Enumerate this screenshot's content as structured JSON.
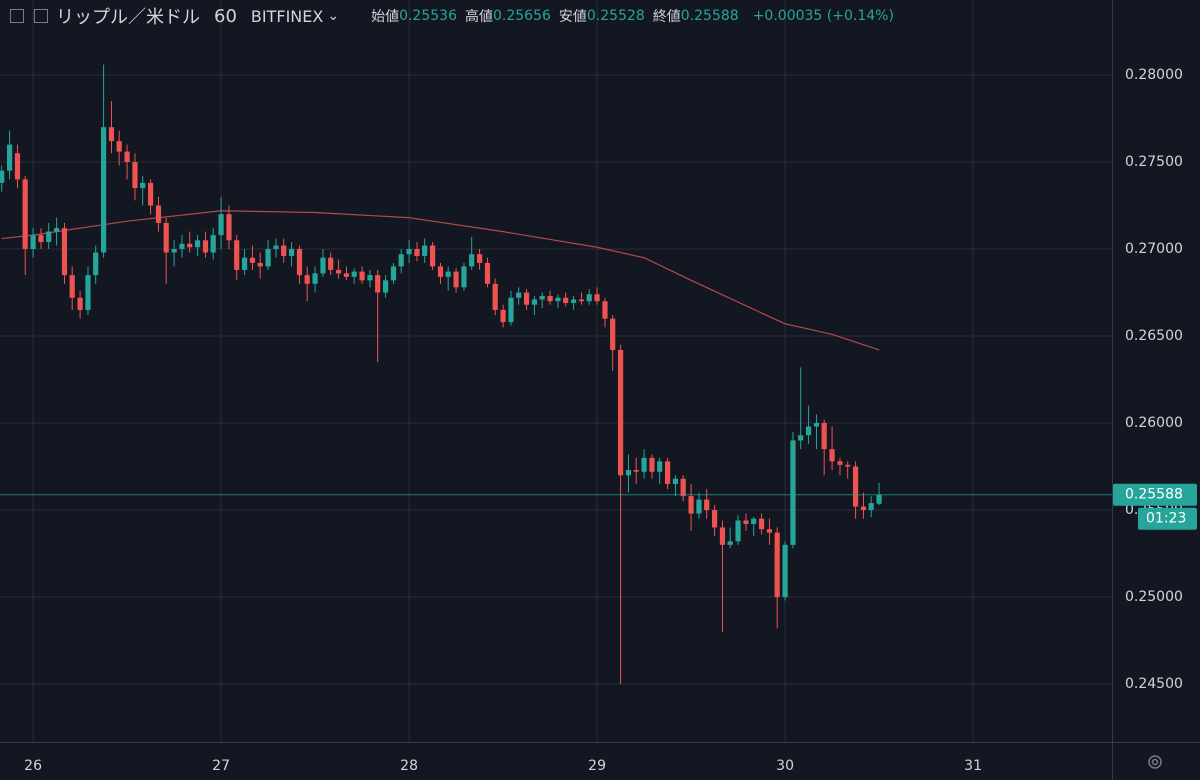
{
  "header": {
    "symbol": "リップル／米ドル",
    "interval": "60",
    "exchange": "BITFINEX",
    "labels": [
      "始値",
      "高値",
      "安値",
      "終値"
    ],
    "change": "+0.00035 (+0.14%)",
    "countdown": "01:23"
  },
  "chart_data": {
    "type": "candlestick",
    "up_color": "#26a69a",
    "down_color": "#ef5350",
    "grid": true,
    "xlim": [
      25.824,
      31.739
    ],
    "xticks": [
      26,
      27,
      28,
      29,
      30,
      31
    ],
    "ylim": [
      0.24167,
      0.28431
    ],
    "yticks": [
      {
        "value": 0.245,
        "label": "0.24500"
      },
      {
        "value": 0.25,
        "label": "0.25000"
      },
      {
        "value": 0.255,
        "label": "0.25500"
      },
      {
        "value": 0.26,
        "label": "0.26000"
      },
      {
        "value": 0.265,
        "label": "0.26500"
      },
      {
        "value": 0.27,
        "label": "0.27000"
      },
      {
        "value": 0.275,
        "label": "0.27500"
      },
      {
        "value": 0.28,
        "label": "0.28000"
      }
    ],
    "x": [
      25.833,
      25.875,
      25.917,
      25.958,
      26.0,
      26.042,
      26.083,
      26.125,
      26.167,
      26.208,
      26.25,
      26.292,
      26.333,
      26.375,
      26.417,
      26.458,
      26.5,
      26.542,
      26.583,
      26.625,
      26.667,
      26.708,
      26.75,
      26.792,
      26.833,
      26.875,
      26.917,
      26.958,
      27.0,
      27.042,
      27.083,
      27.125,
      27.167,
      27.208,
      27.25,
      27.292,
      27.333,
      27.375,
      27.417,
      27.458,
      27.5,
      27.542,
      27.583,
      27.625,
      27.667,
      27.708,
      27.75,
      27.792,
      27.833,
      27.875,
      27.917,
      27.958,
      28.0,
      28.042,
      28.083,
      28.125,
      28.167,
      28.208,
      28.25,
      28.292,
      28.333,
      28.375,
      28.417,
      28.458,
      28.5,
      28.542,
      28.583,
      28.625,
      28.667,
      28.708,
      28.75,
      28.792,
      28.833,
      28.875,
      28.917,
      28.958,
      29.0,
      29.042,
      29.083,
      29.125,
      29.167,
      29.208,
      29.25,
      29.292,
      29.333,
      29.375,
      29.417,
      29.458,
      29.5,
      29.542,
      29.583,
      29.625,
      29.667,
      29.708,
      29.75,
      29.792,
      29.833,
      29.875,
      29.917,
      29.958,
      30.0,
      30.042,
      30.083,
      30.125,
      30.167,
      30.208,
      30.25,
      30.292,
      30.333,
      30.375,
      30.417,
      30.458,
      30.5
    ],
    "candles": [
      [
        0.2738,
        0.2748,
        0.2733,
        0.2745
      ],
      [
        0.2745,
        0.2768,
        0.274,
        0.276
      ],
      [
        0.2755,
        0.276,
        0.2735,
        0.274
      ],
      [
        0.274,
        0.2742,
        0.2685,
        0.27
      ],
      [
        0.27,
        0.2712,
        0.2695,
        0.2708
      ],
      [
        0.2708,
        0.2712,
        0.27,
        0.2704
      ],
      [
        0.2704,
        0.2715,
        0.27,
        0.271
      ],
      [
        0.271,
        0.2718,
        0.2702,
        0.2712
      ],
      [
        0.2712,
        0.2715,
        0.268,
        0.2685
      ],
      [
        0.2685,
        0.269,
        0.2665,
        0.2672
      ],
      [
        0.2672,
        0.2676,
        0.266,
        0.2665
      ],
      [
        0.2665,
        0.269,
        0.2662,
        0.2685
      ],
      [
        0.2685,
        0.2702,
        0.268,
        0.2698
      ],
      [
        0.2698,
        0.2806,
        0.2695,
        0.277
      ],
      [
        0.277,
        0.2785,
        0.2755,
        0.2762
      ],
      [
        0.2762,
        0.2768,
        0.2748,
        0.2756
      ],
      [
        0.2756,
        0.276,
        0.274,
        0.275
      ],
      [
        0.275,
        0.2755,
        0.2728,
        0.2735
      ],
      [
        0.2735,
        0.2742,
        0.2725,
        0.2738
      ],
      [
        0.2738,
        0.274,
        0.272,
        0.2725
      ],
      [
        0.2725,
        0.273,
        0.271,
        0.2715
      ],
      [
        0.2715,
        0.2718,
        0.268,
        0.2698
      ],
      [
        0.2698,
        0.2705,
        0.269,
        0.27
      ],
      [
        0.27,
        0.2708,
        0.2695,
        0.2703
      ],
      [
        0.2703,
        0.271,
        0.2698,
        0.2701
      ],
      [
        0.2701,
        0.2708,
        0.2696,
        0.2705
      ],
      [
        0.2705,
        0.271,
        0.2695,
        0.2698
      ],
      [
        0.2698,
        0.2712,
        0.2694,
        0.2708
      ],
      [
        0.2708,
        0.273,
        0.27,
        0.272
      ],
      [
        0.272,
        0.2725,
        0.27,
        0.2705
      ],
      [
        0.2705,
        0.2708,
        0.2682,
        0.2688
      ],
      [
        0.2688,
        0.27,
        0.2685,
        0.2695
      ],
      [
        0.2695,
        0.2702,
        0.2688,
        0.2692
      ],
      [
        0.2692,
        0.2698,
        0.2683,
        0.269
      ],
      [
        0.269,
        0.2705,
        0.2688,
        0.27
      ],
      [
        0.27,
        0.2706,
        0.2695,
        0.2702
      ],
      [
        0.2702,
        0.2706,
        0.2692,
        0.2696
      ],
      [
        0.2696,
        0.2704,
        0.269,
        0.27
      ],
      [
        0.27,
        0.2702,
        0.268,
        0.2685
      ],
      [
        0.2685,
        0.269,
        0.267,
        0.268
      ],
      [
        0.268,
        0.269,
        0.2675,
        0.2686
      ],
      [
        0.2686,
        0.27,
        0.2684,
        0.2695
      ],
      [
        0.2695,
        0.2698,
        0.2685,
        0.2688
      ],
      [
        0.2688,
        0.2694,
        0.2683,
        0.2686
      ],
      [
        0.2686,
        0.269,
        0.2682,
        0.2684
      ],
      [
        0.2684,
        0.2689,
        0.268,
        0.2687
      ],
      [
        0.2687,
        0.269,
        0.268,
        0.2682
      ],
      [
        0.2682,
        0.2688,
        0.2678,
        0.2685
      ],
      [
        0.2685,
        0.2688,
        0.2635,
        0.2675
      ],
      [
        0.2675,
        0.2685,
        0.2672,
        0.2682
      ],
      [
        0.2682,
        0.2692,
        0.268,
        0.269
      ],
      [
        0.269,
        0.27,
        0.2686,
        0.2697
      ],
      [
        0.2697,
        0.2705,
        0.2692,
        0.27
      ],
      [
        0.27,
        0.2704,
        0.2693,
        0.2696
      ],
      [
        0.2696,
        0.2706,
        0.2692,
        0.2702
      ],
      [
        0.2702,
        0.2704,
        0.2688,
        0.269
      ],
      [
        0.269,
        0.2692,
        0.268,
        0.2684
      ],
      [
        0.2684,
        0.269,
        0.2676,
        0.2687
      ],
      [
        0.2687,
        0.2689,
        0.2675,
        0.2678
      ],
      [
        0.2678,
        0.2692,
        0.2676,
        0.269
      ],
      [
        0.269,
        0.2707,
        0.2688,
        0.2697
      ],
      [
        0.2697,
        0.27,
        0.2688,
        0.2692
      ],
      [
        0.2692,
        0.2695,
        0.2678,
        0.268
      ],
      [
        0.268,
        0.2683,
        0.2662,
        0.2665
      ],
      [
        0.2665,
        0.2668,
        0.2655,
        0.2658
      ],
      [
        0.2658,
        0.2676,
        0.2656,
        0.2672
      ],
      [
        0.2672,
        0.2678,
        0.2668,
        0.2675
      ],
      [
        0.2675,
        0.2677,
        0.2665,
        0.2668
      ],
      [
        0.2668,
        0.2673,
        0.2662,
        0.2671
      ],
      [
        0.2671,
        0.2675,
        0.2666,
        0.2673
      ],
      [
        0.2673,
        0.2676,
        0.2668,
        0.267
      ],
      [
        0.267,
        0.2674,
        0.2666,
        0.2672
      ],
      [
        0.2672,
        0.2675,
        0.2667,
        0.2669
      ],
      [
        0.2669,
        0.2673,
        0.2665,
        0.2671
      ],
      [
        0.2671,
        0.2675,
        0.2668,
        0.267
      ],
      [
        0.267,
        0.2677,
        0.2668,
        0.2674
      ],
      [
        0.2674,
        0.2678,
        0.2668,
        0.267
      ],
      [
        0.267,
        0.2672,
        0.2655,
        0.266
      ],
      [
        0.266,
        0.2662,
        0.263,
        0.2642
      ],
      [
        0.2642,
        0.2645,
        0.245,
        0.257
      ],
      [
        0.257,
        0.2582,
        0.256,
        0.2573
      ],
      [
        0.2573,
        0.258,
        0.2565,
        0.2572
      ],
      [
        0.2572,
        0.2585,
        0.2568,
        0.258
      ],
      [
        0.258,
        0.2582,
        0.2568,
        0.2572
      ],
      [
        0.2572,
        0.258,
        0.2565,
        0.2578
      ],
      [
        0.2578,
        0.258,
        0.2562,
        0.2565
      ],
      [
        0.2565,
        0.257,
        0.2558,
        0.2568
      ],
      [
        0.2568,
        0.257,
        0.2555,
        0.2558
      ],
      [
        0.2558,
        0.2565,
        0.2538,
        0.2548
      ],
      [
        0.2548,
        0.256,
        0.2545,
        0.2556
      ],
      [
        0.2556,
        0.2562,
        0.2545,
        0.255
      ],
      [
        0.255,
        0.2553,
        0.2535,
        0.254
      ],
      [
        0.254,
        0.2544,
        0.248,
        0.253
      ],
      [
        0.253,
        0.254,
        0.2528,
        0.2532
      ],
      [
        0.2532,
        0.2547,
        0.253,
        0.2544
      ],
      [
        0.2544,
        0.2548,
        0.2538,
        0.2542
      ],
      [
        0.2542,
        0.2546,
        0.2535,
        0.2545
      ],
      [
        0.2545,
        0.2548,
        0.2536,
        0.2539
      ],
      [
        0.2539,
        0.2545,
        0.253,
        0.2537
      ],
      [
        0.2537,
        0.254,
        0.2482,
        0.25
      ],
      [
        0.25,
        0.2532,
        0.2498,
        0.253
      ],
      [
        0.253,
        0.2595,
        0.2528,
        0.259
      ],
      [
        0.259,
        0.2632,
        0.2585,
        0.2593
      ],
      [
        0.2593,
        0.261,
        0.2588,
        0.2598
      ],
      [
        0.2598,
        0.2605,
        0.2585,
        0.26
      ],
      [
        0.26,
        0.2602,
        0.257,
        0.2585
      ],
      [
        0.2585,
        0.2598,
        0.2573,
        0.2578
      ],
      [
        0.2578,
        0.258,
        0.257,
        0.2576
      ],
      [
        0.2576,
        0.2578,
        0.2568,
        0.2575
      ],
      [
        0.2575,
        0.2578,
        0.2545,
        0.2552
      ],
      [
        0.2552,
        0.256,
        0.2545,
        0.255
      ],
      [
        0.255,
        0.2558,
        0.2546,
        0.2554
      ],
      [
        0.25536,
        0.25656,
        0.25528,
        0.25588
      ]
    ],
    "ma": {
      "color": "#b24a4a",
      "x": [
        25.833,
        26.0,
        26.5,
        27.0,
        27.5,
        28.0,
        28.5,
        29.0,
        29.25,
        29.5,
        30.0,
        30.25,
        30.5
      ],
      "values": [
        0.2706,
        0.2708,
        0.2716,
        0.2722,
        0.2721,
        0.2718,
        0.271,
        0.2701,
        0.2695,
        0.2682,
        0.2657,
        0.2651,
        0.2642
      ]
    }
  }
}
